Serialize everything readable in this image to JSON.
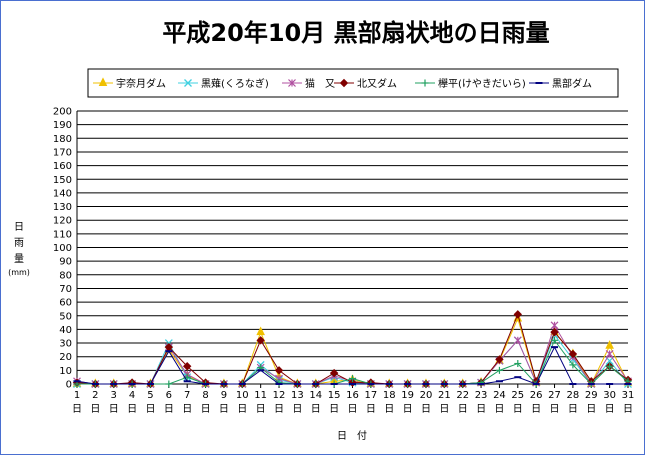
{
  "chart_data": {
    "type": "line",
    "title": "平成20年10月  黒部扇状地の日雨量",
    "ylabel": "日\n雨\n量\n(mm)",
    "xlabel": "日　付",
    "ylim": [
      0,
      200
    ],
    "yticks": [
      0,
      10,
      20,
      30,
      40,
      50,
      60,
      70,
      80,
      90,
      100,
      110,
      120,
      130,
      140,
      150,
      160,
      170,
      180,
      190,
      200
    ],
    "categories": [
      "1",
      "2",
      "3",
      "4",
      "5",
      "6",
      "7",
      "8",
      "9",
      "10",
      "11",
      "12",
      "13",
      "14",
      "15",
      "16",
      "17",
      "18",
      "19",
      "20",
      "21",
      "22",
      "23",
      "24",
      "25",
      "26",
      "27",
      "28",
      "29",
      "30",
      "31"
    ],
    "category_suffix": "日",
    "grid": true,
    "legend_position": "top",
    "series": [
      {
        "name": "宇奈月ダム",
        "color": "#f0c000",
        "marker": "triangle",
        "values": [
          0,
          0,
          0,
          0,
          0,
          25,
          6,
          0,
          0,
          0,
          38,
          5,
          0,
          0,
          2,
          3,
          0,
          0,
          0,
          0,
          0,
          0,
          1,
          17,
          48,
          1,
          38,
          22,
          0,
          28,
          1
        ]
      },
      {
        "name": "黒薙(くろなぎ)",
        "color": "#40d0e0",
        "marker": "x",
        "values": [
          0,
          0,
          0,
          0,
          0,
          30,
          5,
          0,
          0,
          0,
          14,
          3,
          0,
          0,
          5,
          1,
          0,
          0,
          0,
          0,
          0,
          0,
          1,
          17,
          32,
          1,
          36,
          18,
          0,
          17,
          0
        ]
      },
      {
        "name": "猫　又",
        "color": "#b050a0",
        "marker": "star",
        "values": [
          2,
          0,
          0,
          0,
          0,
          27,
          7,
          0,
          0,
          0,
          12,
          4,
          0,
          0,
          6,
          2,
          0,
          0,
          0,
          0,
          0,
          0,
          1,
          17,
          32,
          1,
          43,
          20,
          0,
          22,
          2
        ]
      },
      {
        "name": "北又ダム",
        "color": "#800000",
        "marker": "diamond",
        "values": [
          1,
          0,
          0,
          1,
          0,
          27,
          13,
          1,
          0,
          0,
          32,
          10,
          0,
          0,
          8,
          1,
          1,
          0,
          0,
          0,
          0,
          0,
          1,
          18,
          51,
          2,
          38,
          22,
          2,
          13,
          3
        ]
      },
      {
        "name": "欅平(けやきだいら)",
        "color": "#20a060",
        "marker": "plus",
        "values": [
          0,
          0,
          0,
          0,
          0,
          0,
          5,
          0,
          0,
          0,
          12,
          1,
          0,
          0,
          0,
          4,
          0,
          0,
          0,
          0,
          0,
          0,
          1,
          10,
          15,
          0,
          32,
          14,
          0,
          13,
          2
        ]
      },
      {
        "name": "黒部ダム",
        "color": "#000080",
        "marker": "dash",
        "values": [
          2,
          0,
          0,
          0,
          0,
          24,
          2,
          0,
          0,
          0,
          10,
          0,
          0,
          0,
          0,
          0,
          0,
          0,
          0,
          0,
          0,
          0,
          0,
          2,
          5,
          0,
          27,
          0,
          0,
          0,
          0
        ]
      }
    ]
  }
}
